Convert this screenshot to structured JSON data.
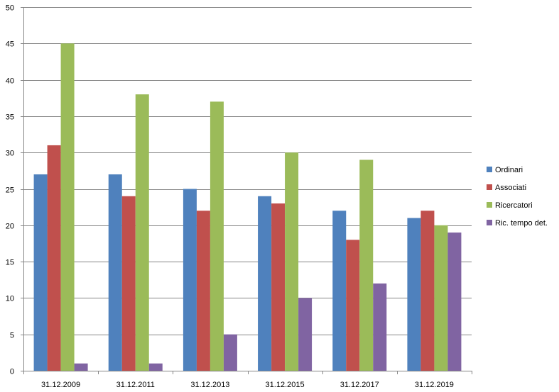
{
  "chart_data": {
    "type": "bar",
    "categories": [
      "31.12.2009",
      "31.12.2011",
      "31.12.2013",
      "31.12.2015",
      "31.12.2017",
      "31.12.2019"
    ],
    "series": [
      {
        "name": "Ordinari",
        "color": "#4F81BD",
        "values": [
          27,
          27,
          25,
          24,
          22,
          21
        ]
      },
      {
        "name": "Associati",
        "color": "#C0504D",
        "values": [
          31,
          24,
          22,
          23,
          18,
          22
        ]
      },
      {
        "name": "Ricercatori",
        "color": "#9BBB59",
        "values": [
          45,
          38,
          37,
          30,
          29,
          20
        ]
      },
      {
        "name": "Ric. tempo det.",
        "color": "#8064A2",
        "values": [
          1,
          1,
          5,
          10,
          12,
          19
        ]
      }
    ],
    "y_ticks": [
      "0",
      "5",
      "10",
      "15",
      "20",
      "25",
      "30",
      "35",
      "40",
      "45",
      "50"
    ],
    "ylim": [
      0,
      50
    ],
    "grid": true,
    "legend_position": "right",
    "title": "",
    "xlabel": "",
    "ylabel": ""
  }
}
